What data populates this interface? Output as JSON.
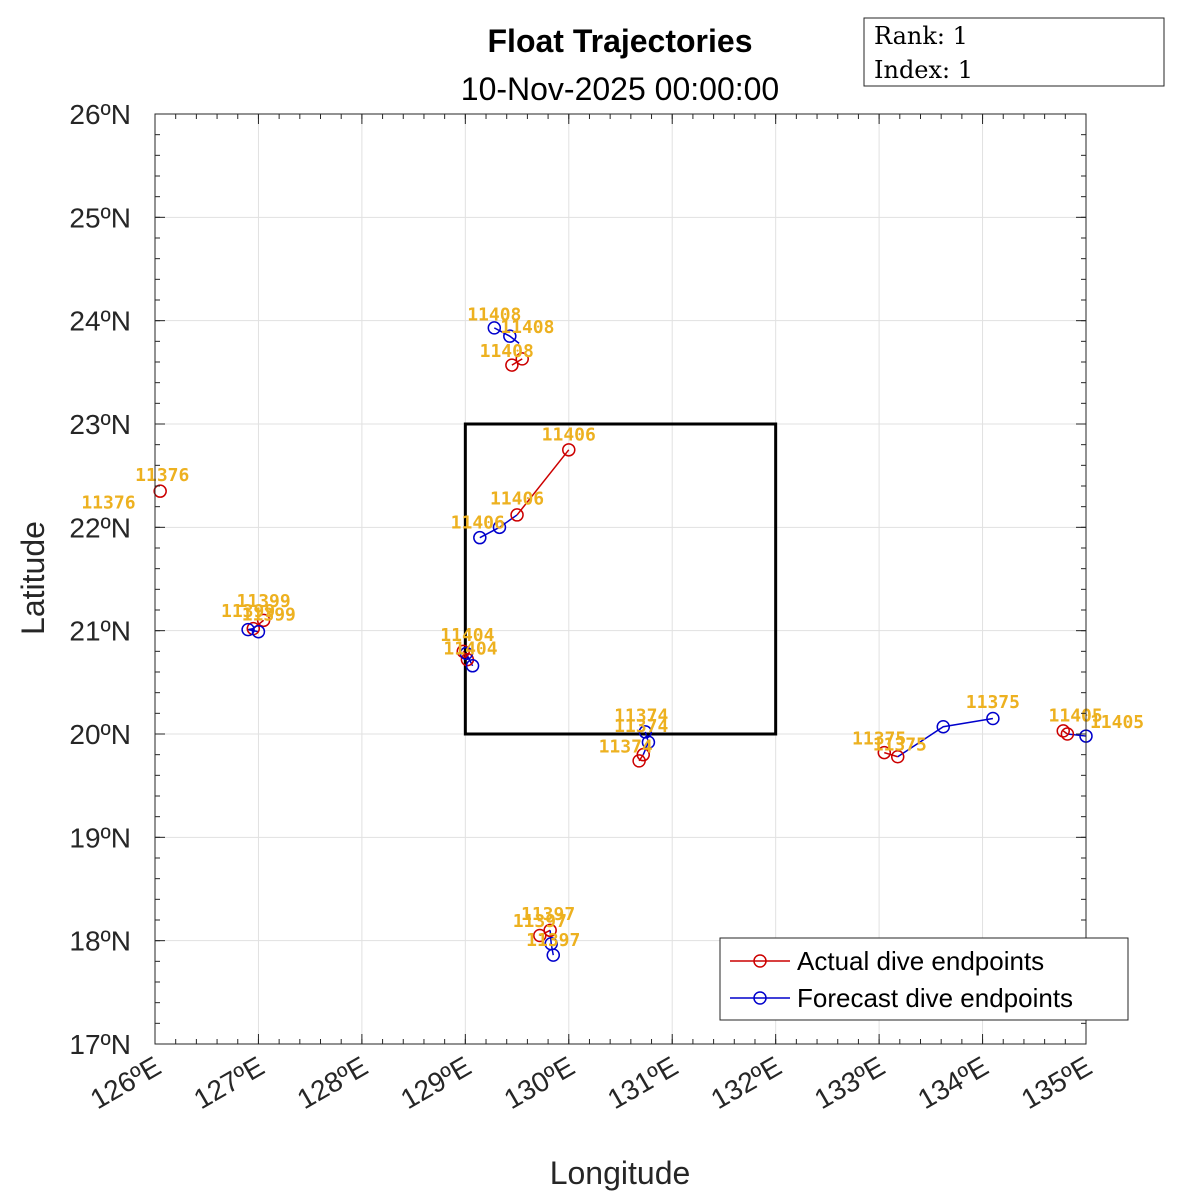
{
  "chart_data": {
    "type": "line",
    "title": "Float Trajectories",
    "subtitle": "10-Nov-2025 00:00:00",
    "xlabel": "Longitude",
    "ylabel": "Latitude",
    "xlim": [
      126,
      135
    ],
    "ylim": [
      17,
      26
    ],
    "xticks": [
      126,
      127,
      128,
      129,
      130,
      131,
      132,
      133,
      134,
      135
    ],
    "yticks": [
      17,
      18,
      19,
      20,
      21,
      22,
      23,
      24,
      25,
      26
    ],
    "xtick_labels": [
      "126ºE",
      "127ºE",
      "128ºE",
      "129ºE",
      "130ºE",
      "131ºE",
      "132ºE",
      "133ºE",
      "134ºE",
      "135ºE"
    ],
    "ytick_labels": [
      "17ºN",
      "18ºN",
      "19ºN",
      "20ºN",
      "21ºN",
      "22ºN",
      "23ºN",
      "24ºN",
      "25ºN",
      "26ºN"
    ],
    "grid": true,
    "legend_position": "bottom-right",
    "info_box": {
      "rank": "Rank:  1",
      "index": "Index:  1"
    },
    "colors": {
      "actual": "#CC0000",
      "forecast": "#0000CC",
      "label": "#EDB120",
      "box": "#000000"
    },
    "region_box": {
      "lon": [
        129,
        132
      ],
      "lat": [
        20,
        23
      ]
    },
    "series": [
      {
        "name": "Actual dive endpoints",
        "tracks": [
          [
            [
              130.0,
              22.75
            ],
            [
              129.5,
              22.12
            ]
          ],
          [
            [
              129.45,
              23.57
            ],
            [
              129.55,
              23.63
            ]
          ],
          [
            [
              126.05,
              22.35
            ]
          ],
          [
            [
              127.05,
              21.1
            ],
            [
              126.95,
              21.02
            ]
          ],
          [
            [
              128.98,
              20.8
            ],
            [
              129.02,
              20.72
            ]
          ],
          [
            [
              130.68,
              19.74
            ],
            [
              130.72,
              19.8
            ]
          ],
          [
            [
              133.05,
              19.82
            ],
            [
              133.18,
              19.78
            ]
          ],
          [
            [
              134.78,
              20.03
            ],
            [
              134.82,
              20.0
            ]
          ],
          [
            [
              129.72,
              18.05
            ],
            [
              129.82,
              18.1
            ]
          ]
        ]
      },
      {
        "name": "Forecast dive endpoints",
        "tracks": [
          [
            [
              129.5,
              22.12
            ],
            [
              129.33,
              22.0
            ],
            [
              129.14,
              21.9
            ]
          ],
          [
            [
              129.52,
              23.78
            ],
            [
              129.43,
              23.85
            ],
            [
              129.28,
              23.93
            ]
          ],
          [
            [
              126.95,
              21.02
            ],
            [
              126.9,
              21.01
            ],
            [
              127.0,
              20.99
            ]
          ],
          [
            [
              129.02,
              20.72
            ],
            [
              129.01,
              20.78
            ],
            [
              129.07,
              20.66
            ]
          ],
          [
            [
              130.72,
              19.8
            ],
            [
              130.77,
              19.92
            ],
            [
              130.74,
              20.02
            ]
          ],
          [
            [
              133.18,
              19.78
            ],
            [
              133.62,
              20.07
            ],
            [
              134.1,
              20.15
            ]
          ],
          [
            [
              134.82,
              20.0
            ],
            [
              135.0,
              19.98
            ]
          ],
          [
            [
              129.82,
              18.1
            ],
            [
              129.83,
              17.97
            ],
            [
              129.85,
              17.86
            ]
          ]
        ]
      }
    ],
    "annotations": [
      {
        "text": "11408",
        "lon": 129.28,
        "lat": 24.0
      },
      {
        "text": "11408",
        "lon": 129.6,
        "lat": 23.88
      },
      {
        "text": "11408",
        "lon": 129.4,
        "lat": 23.65
      },
      {
        "text": "11406",
        "lon": 130.0,
        "lat": 22.84
      },
      {
        "text": "11406",
        "lon": 129.5,
        "lat": 22.22
      },
      {
        "text": "11406",
        "lon": 129.12,
        "lat": 21.99
      },
      {
        "text": "11376",
        "lon": 126.07,
        "lat": 22.45
      },
      {
        "text": "11376",
        "lon": 125.55,
        "lat": 22.18
      },
      {
        "text": "11399",
        "lon": 127.05,
        "lat": 21.23
      },
      {
        "text": "11399",
        "lon": 126.9,
        "lat": 21.13
      },
      {
        "text": "11399",
        "lon": 127.1,
        "lat": 21.1
      },
      {
        "text": "11404",
        "lon": 129.02,
        "lat": 20.9
      },
      {
        "text": "11404",
        "lon": 129.05,
        "lat": 20.77
      },
      {
        "text": "11374",
        "lon": 130.7,
        "lat": 20.12
      },
      {
        "text": "11374",
        "lon": 130.7,
        "lat": 20.02
      },
      {
        "text": "11374",
        "lon": 130.55,
        "lat": 19.82
      },
      {
        "text": "11375",
        "lon": 133.0,
        "lat": 19.9
      },
      {
        "text": "11375",
        "lon": 133.2,
        "lat": 19.84
      },
      {
        "text": "11375",
        "lon": 134.1,
        "lat": 20.25
      },
      {
        "text": "11405",
        "lon": 134.9,
        "lat": 20.12
      },
      {
        "text": "11405",
        "lon": 135.3,
        "lat": 20.06
      },
      {
        "text": "11397",
        "lon": 129.8,
        "lat": 18.2
      },
      {
        "text": "11397",
        "lon": 129.72,
        "lat": 18.13
      },
      {
        "text": "11397",
        "lon": 129.85,
        "lat": 17.95
      }
    ]
  }
}
